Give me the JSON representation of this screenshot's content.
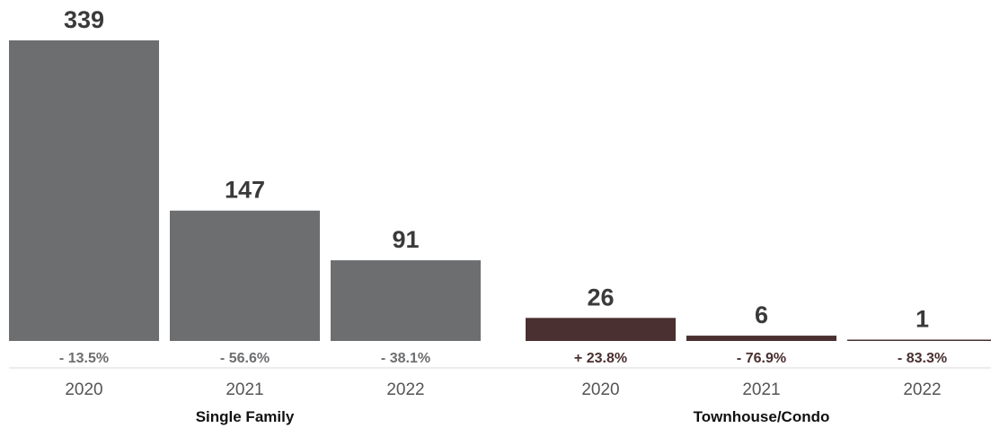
{
  "chart_data": {
    "type": "bar",
    "groups": [
      {
        "name": "Single Family",
        "color": "#6d6e70",
        "pct_color": "#6d6e70",
        "bars": [
          {
            "year": "2020",
            "value": 339,
            "value_label": "339",
            "change": "- 13.5%"
          },
          {
            "year": "2021",
            "value": 147,
            "value_label": "147",
            "change": "- 56.6%"
          },
          {
            "year": "2022",
            "value": 91,
            "value_label": "91",
            "change": "- 38.1%"
          }
        ]
      },
      {
        "name": "Townhouse/Condo",
        "color": "#4a3030",
        "pct_color": "#4a3030",
        "bars": [
          {
            "year": "2020",
            "value": 26,
            "value_label": "26",
            "change": "+ 23.8%"
          },
          {
            "year": "2021",
            "value": 6,
            "value_label": "6",
            "change": "- 76.9%"
          },
          {
            "year": "2022",
            "value": 1,
            "value_label": "1",
            "change": "- 83.3%"
          }
        ]
      }
    ],
    "ylim": [
      0,
      339
    ],
    "grid": false,
    "legend": "none"
  }
}
